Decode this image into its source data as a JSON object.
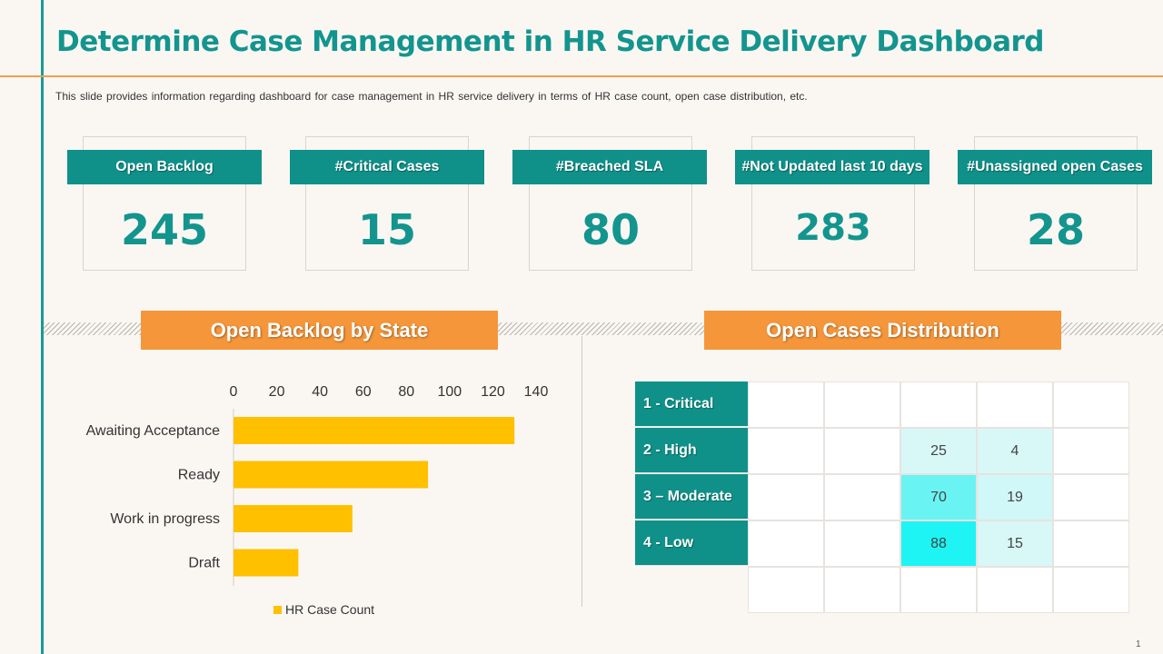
{
  "title": "Determine Case Management in HR Service Delivery Dashboard",
  "subtitle": "This slide provides information regarding dashboard for case management in HR service delivery in terms of HR case count, open case distribution, etc.",
  "colors": {
    "teal": "#0f9189",
    "orange": "#f5963a",
    "bar": "#ffc000",
    "accent_line": "#f0a050"
  },
  "kpis": [
    {
      "label": "Open Backlog",
      "value": "245"
    },
    {
      "label": "#Critical Cases",
      "value": "15"
    },
    {
      "label": "#Breached SLA",
      "value": "80"
    },
    {
      "label": "#Not Updated last 10 days",
      "value": "283"
    },
    {
      "label": "#Unassigned open Cases",
      "value": "28"
    }
  ],
  "sections": {
    "backlog_title": "Open Backlog by State",
    "distribution_title": "Open Cases Distribution"
  },
  "chart_data": [
    {
      "type": "bar",
      "orientation": "horizontal",
      "title": "Open Backlog by State",
      "categories": [
        "Awaiting Acceptance",
        "Ready",
        "Work in progress",
        "Draft"
      ],
      "series": [
        {
          "name": "HR Case Count",
          "values": [
            130,
            90,
            55,
            30
          ]
        }
      ],
      "xlim": [
        0,
        140
      ],
      "xticks": [
        "0",
        "20",
        "40",
        "60",
        "80",
        "100",
        "120",
        "140"
      ],
      "legend": "bottom"
    },
    {
      "type": "heatmap",
      "title": "Open Cases Distribution",
      "rows": [
        "1 - Critical",
        "2 - High",
        "3 – Moderate",
        "4 - Low"
      ],
      "columns": [
        "",
        "",
        "",
        "",
        ""
      ],
      "visible_values": [
        [
          "",
          "",
          "",
          "",
          ""
        ],
        [
          "",
          "",
          "25",
          "4",
          ""
        ],
        [
          "",
          "",
          "70",
          "19",
          ""
        ],
        [
          "",
          "",
          "88",
          "15",
          ""
        ]
      ],
      "cell_colors": [
        [
          "#ffffff",
          "#ffffff",
          "#ffffff",
          "#ffffff",
          "#ffffff"
        ],
        [
          "#ffffff",
          "#ffffff",
          "#d8f8f8",
          "#d8f8f8",
          "#ffffff"
        ],
        [
          "#ffffff",
          "#ffffff",
          "#6af3f3",
          "#d0f8f8",
          "#ffffff"
        ],
        [
          "#ffffff",
          "#ffffff",
          "#1ef4f4",
          "#d8f8f8",
          "#ffffff"
        ]
      ]
    }
  ],
  "page_number": "1"
}
